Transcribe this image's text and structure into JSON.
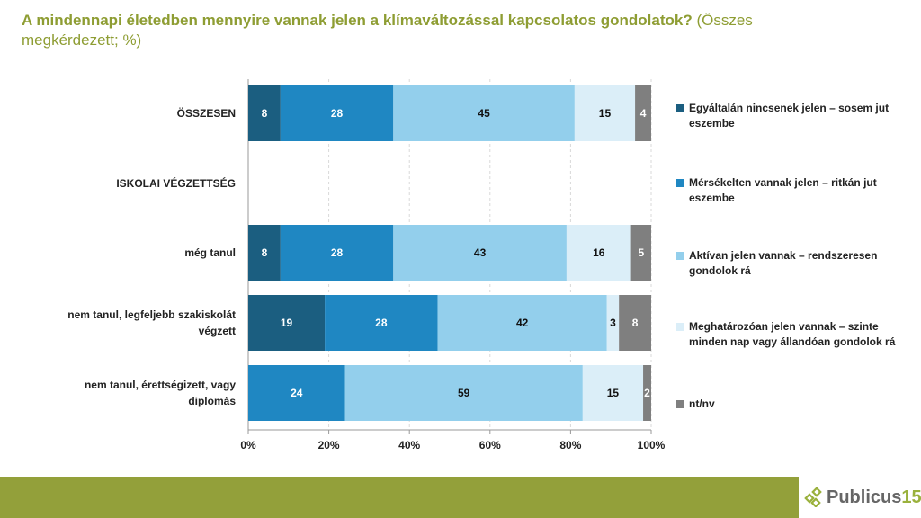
{
  "title": {
    "bold": "A mindennapi életedben mennyire vannak jelen a klímaváltozással kapcsolatos gondolatok?",
    "normal": " (Összes megkérdezett; %)"
  },
  "chart_data": {
    "type": "bar",
    "orientation": "horizontal-stacked-100",
    "categories": [
      "ÖSSZESEN",
      "ISKOLAI VÉGZETTSÉG",
      "még tanul",
      "nem tanul, legfeljebb szakiskolát végzett",
      "nem tanul, érettségizett, vagy diplomás"
    ],
    "series": [
      {
        "name": "Egyáltalán nincsenek jelen – sosem jut eszembe",
        "color": "#1b5e80",
        "values": [
          8,
          null,
          8,
          19,
          0
        ]
      },
      {
        "name": "Mérsékelten vannak jelen – ritkán jut eszembe",
        "color": "#1f87c2",
        "values": [
          28,
          null,
          28,
          28,
          24
        ]
      },
      {
        "name": "Aktívan jelen vannak – rendszeresen gondolok rá",
        "color": "#93cfec",
        "values": [
          45,
          null,
          43,
          42,
          59
        ]
      },
      {
        "name": "Meghatározóan jelen vannak – szinte minden nap vagy állandóan gondolok rá",
        "color": "#dbeef8",
        "values": [
          15,
          null,
          16,
          3,
          15
        ]
      },
      {
        "name": "nt/nv",
        "color": "#7f7f7f",
        "values": [
          4,
          null,
          5,
          8,
          2
        ]
      }
    ],
    "xticks": [
      "0%",
      "20%",
      "40%",
      "60%",
      "80%",
      "100%"
    ],
    "xlim": [
      0,
      100
    ],
    "grid": "vertical dashed",
    "legend": "right"
  },
  "logo": {
    "text": "Publicus",
    "number": "15"
  }
}
